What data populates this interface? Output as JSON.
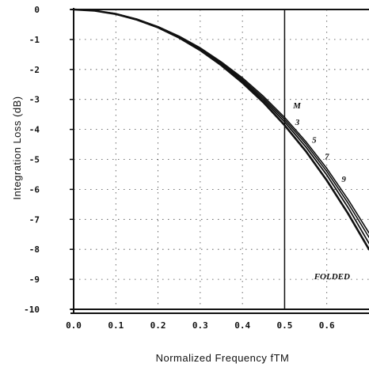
{
  "chart_data": {
    "type": "line",
    "xlabel": "Normalized Frequency   fTM",
    "ylabel": "Integration Loss (dB)",
    "xlim": [
      0.0,
      0.7
    ],
    "ylim": [
      -10,
      0
    ],
    "xticks": [
      0.0,
      0.1,
      0.2,
      0.3,
      0.4,
      0.5,
      0.6
    ],
    "xtick_labels": [
      "0.0",
      "0.1",
      "0.2",
      "0.3",
      "0.4",
      "0.5",
      "0.6"
    ],
    "yticks": [
      0,
      -1,
      -2,
      -3,
      -4,
      -5,
      -6,
      -7,
      -8,
      -9,
      -10
    ],
    "ytick_labels": [
      "0",
      "-1",
      "-2",
      "-3",
      "-4",
      "-5",
      "-6",
      "-7",
      "-8",
      "-9",
      "-10"
    ],
    "grid": true,
    "vertical_line_x": 0.5,
    "annotations": [
      {
        "text": "M",
        "x": 0.52,
        "y": -3.3
      },
      {
        "text": "FOLDED",
        "x": 0.57,
        "y": -9.0
      }
    ],
    "series": [
      {
        "name": "3",
        "x": [
          0.0,
          0.05,
          0.1,
          0.15,
          0.2,
          0.25,
          0.3,
          0.35,
          0.4,
          0.45,
          0.5,
          0.55,
          0.6,
          0.65,
          0.7
        ],
        "y": [
          0.0,
          -0.04,
          -0.15,
          -0.34,
          -0.6,
          -0.94,
          -1.36,
          -1.86,
          -2.44,
          -3.1,
          -3.86,
          -4.72,
          -5.7,
          -6.8,
          -8.0
        ]
      },
      {
        "name": "5",
        "x": [
          0.0,
          0.05,
          0.1,
          0.15,
          0.2,
          0.25,
          0.3,
          0.35,
          0.4,
          0.45,
          0.5,
          0.55,
          0.6,
          0.65,
          0.7
        ],
        "y": [
          0.0,
          -0.04,
          -0.15,
          -0.33,
          -0.59,
          -0.92,
          -1.33,
          -1.82,
          -2.38,
          -3.02,
          -3.75,
          -4.58,
          -5.52,
          -6.6,
          -7.8
        ]
      },
      {
        "name": "7",
        "x": [
          0.0,
          0.05,
          0.1,
          0.15,
          0.2,
          0.25,
          0.3,
          0.35,
          0.4,
          0.45,
          0.5,
          0.55,
          0.6,
          0.65,
          0.7
        ],
        "y": [
          0.0,
          -0.04,
          -0.14,
          -0.32,
          -0.58,
          -0.9,
          -1.3,
          -1.78,
          -2.33,
          -2.96,
          -3.67,
          -4.48,
          -5.4,
          -6.45,
          -7.6
        ]
      },
      {
        "name": "9",
        "x": [
          0.0,
          0.05,
          0.1,
          0.15,
          0.2,
          0.25,
          0.3,
          0.35,
          0.4,
          0.45,
          0.5,
          0.55,
          0.6,
          0.65,
          0.7
        ],
        "y": [
          0.0,
          -0.04,
          -0.14,
          -0.32,
          -0.57,
          -0.89,
          -1.28,
          -1.75,
          -2.28,
          -2.9,
          -3.6,
          -4.4,
          -5.3,
          -6.33,
          -7.45
        ]
      }
    ],
    "curve_labels": [
      {
        "text": "3",
        "x": 0.525,
        "y": -3.85
      },
      {
        "text": "5",
        "x": 0.565,
        "y": -4.45
      },
      {
        "text": "7",
        "x": 0.595,
        "y": -5.0
      },
      {
        "text": "9",
        "x": 0.635,
        "y": -5.75
      }
    ]
  }
}
